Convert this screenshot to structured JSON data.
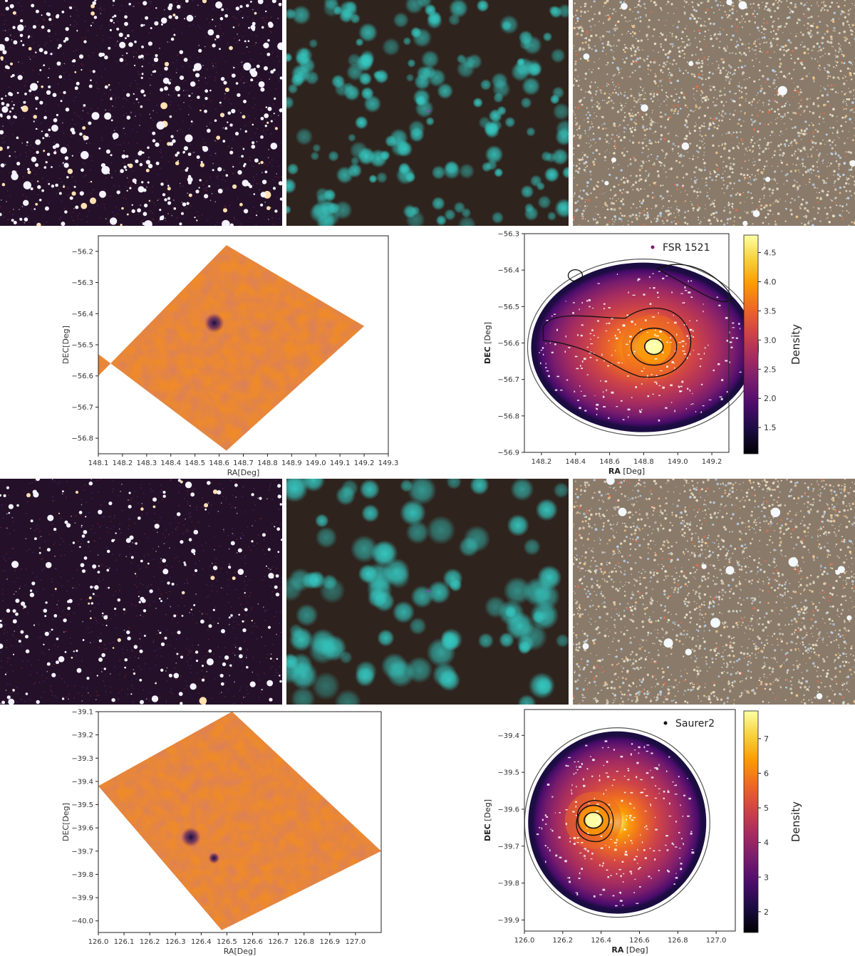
{
  "colors": {
    "optical_bg": "#241028",
    "ir_bg": "#2f231d",
    "star_cyan": "#35c9c2",
    "dense_bg": "#8a7a6a",
    "map_fill": "#ee8a2a",
    "cluster_dark": "#1b0f40"
  },
  "rows": [
    {
      "images": [
        {
          "name": "optical-image",
          "style": "optical"
        },
        {
          "name": "infrared-image",
          "style": "infrared"
        },
        {
          "name": "dense-field-image",
          "style": "dense"
        }
      ]
    },
    {
      "images": [
        {
          "name": "optical-image",
          "style": "optical"
        },
        {
          "name": "infrared-image",
          "style": "infrared"
        },
        {
          "name": "dense-field-image",
          "style": "dense"
        }
      ]
    }
  ],
  "chart_data": [
    {
      "type": "heatmap",
      "panel": "sky-coverage",
      "xlabel": "RA[Deg]",
      "ylabel": "DEC[Deg]",
      "xlim": [
        148.1,
        149.3
      ],
      "ylim": [
        -56.85,
        -56.15
      ],
      "xticks": [
        "148.1",
        "148.2",
        "148.3",
        "148.4",
        "148.5",
        "148.6",
        "148.7",
        "148.8",
        "148.9",
        "149.0",
        "149.1",
        "149.2",
        "149.3"
      ],
      "yticks": [
        "-56.2",
        "-56.3",
        "-56.4",
        "-56.5",
        "-56.6",
        "-56.7",
        "-56.8"
      ],
      "footprint": [
        [
          148.63,
          -56.18
        ],
        [
          149.2,
          -56.44
        ],
        [
          148.63,
          -56.84
        ],
        [
          148.1,
          -56.53
        ],
        [
          148.1,
          -56.6
        ]
      ],
      "dark_spots": [
        {
          "x": 148.58,
          "y": -56.43
        }
      ]
    },
    {
      "type": "heatmap",
      "panel": "density-map",
      "xlabel": "RA",
      "xunit": "[Deg]",
      "ylabel": "DEC",
      "yunit": "[Deg]",
      "legend": "FSR 1521",
      "colorbar_label": "Density",
      "colorbar_ticks": [
        "1.5",
        "2.0",
        "2.5",
        "3.0",
        "3.5",
        "4.0",
        "4.5"
      ],
      "colorbar_range": [
        1.05,
        4.8
      ],
      "xlim": [
        148.1,
        149.3
      ],
      "ylim": [
        -56.9,
        -56.3
      ],
      "xticks": [
        "148.2",
        "148.4",
        "148.6",
        "148.8",
        "149.0",
        "149.2"
      ],
      "yticks": [
        "-56.3",
        "-56.4",
        "-56.5",
        "-56.6",
        "-56.7",
        "-56.8",
        "-56.9"
      ],
      "peak": {
        "x": 148.86,
        "y": -56.61
      }
    },
    {
      "type": "heatmap",
      "panel": "sky-coverage",
      "xlabel": "RA[Deg]",
      "ylabel": "DEC[Deg]",
      "xlim": [
        126.0,
        127.1
      ],
      "ylim": [
        -40.05,
        -39.1
      ],
      "xticks": [
        "126.0",
        "126.1",
        "126.2",
        "126.3",
        "126.4",
        "126.5",
        "126.6",
        "126.7",
        "126.8",
        "126.9",
        "127.0"
      ],
      "yticks": [
        "-39.1",
        "-39.2",
        "-39.3",
        "-39.4",
        "-39.5",
        "-39.6",
        "-39.7",
        "-39.8",
        "-39.9",
        "-40.0"
      ],
      "footprint": [
        [
          126.52,
          -39.1
        ],
        [
          127.1,
          -39.7
        ],
        [
          126.48,
          -40.04
        ],
        [
          126.0,
          -39.42
        ]
      ],
      "dark_spots": [
        {
          "x": 126.36,
          "y": -39.64
        },
        {
          "x": 126.45,
          "y": -39.73
        }
      ]
    },
    {
      "type": "heatmap",
      "panel": "density-map",
      "xlabel": "RA",
      "xunit": "[Deg]",
      "ylabel": "DEC",
      "yunit": "[Deg]",
      "legend": "Saurer2",
      "colorbar_label": "Density",
      "colorbar_ticks": [
        "2",
        "3",
        "4",
        "5",
        "6",
        "7"
      ],
      "colorbar_range": [
        1.4,
        7.8
      ],
      "xlim": [
        126.0,
        127.1
      ],
      "ylim": [
        -39.93,
        -39.33
      ],
      "xticks": [
        "126.0",
        "126.2",
        "126.4",
        "126.6",
        "126.8",
        "127.0"
      ],
      "yticks": [
        "-39.4",
        "-39.5",
        "-39.6",
        "-39.7",
        "-39.8",
        "-39.9"
      ],
      "peak": {
        "x": 126.36,
        "y": -39.63
      }
    }
  ]
}
